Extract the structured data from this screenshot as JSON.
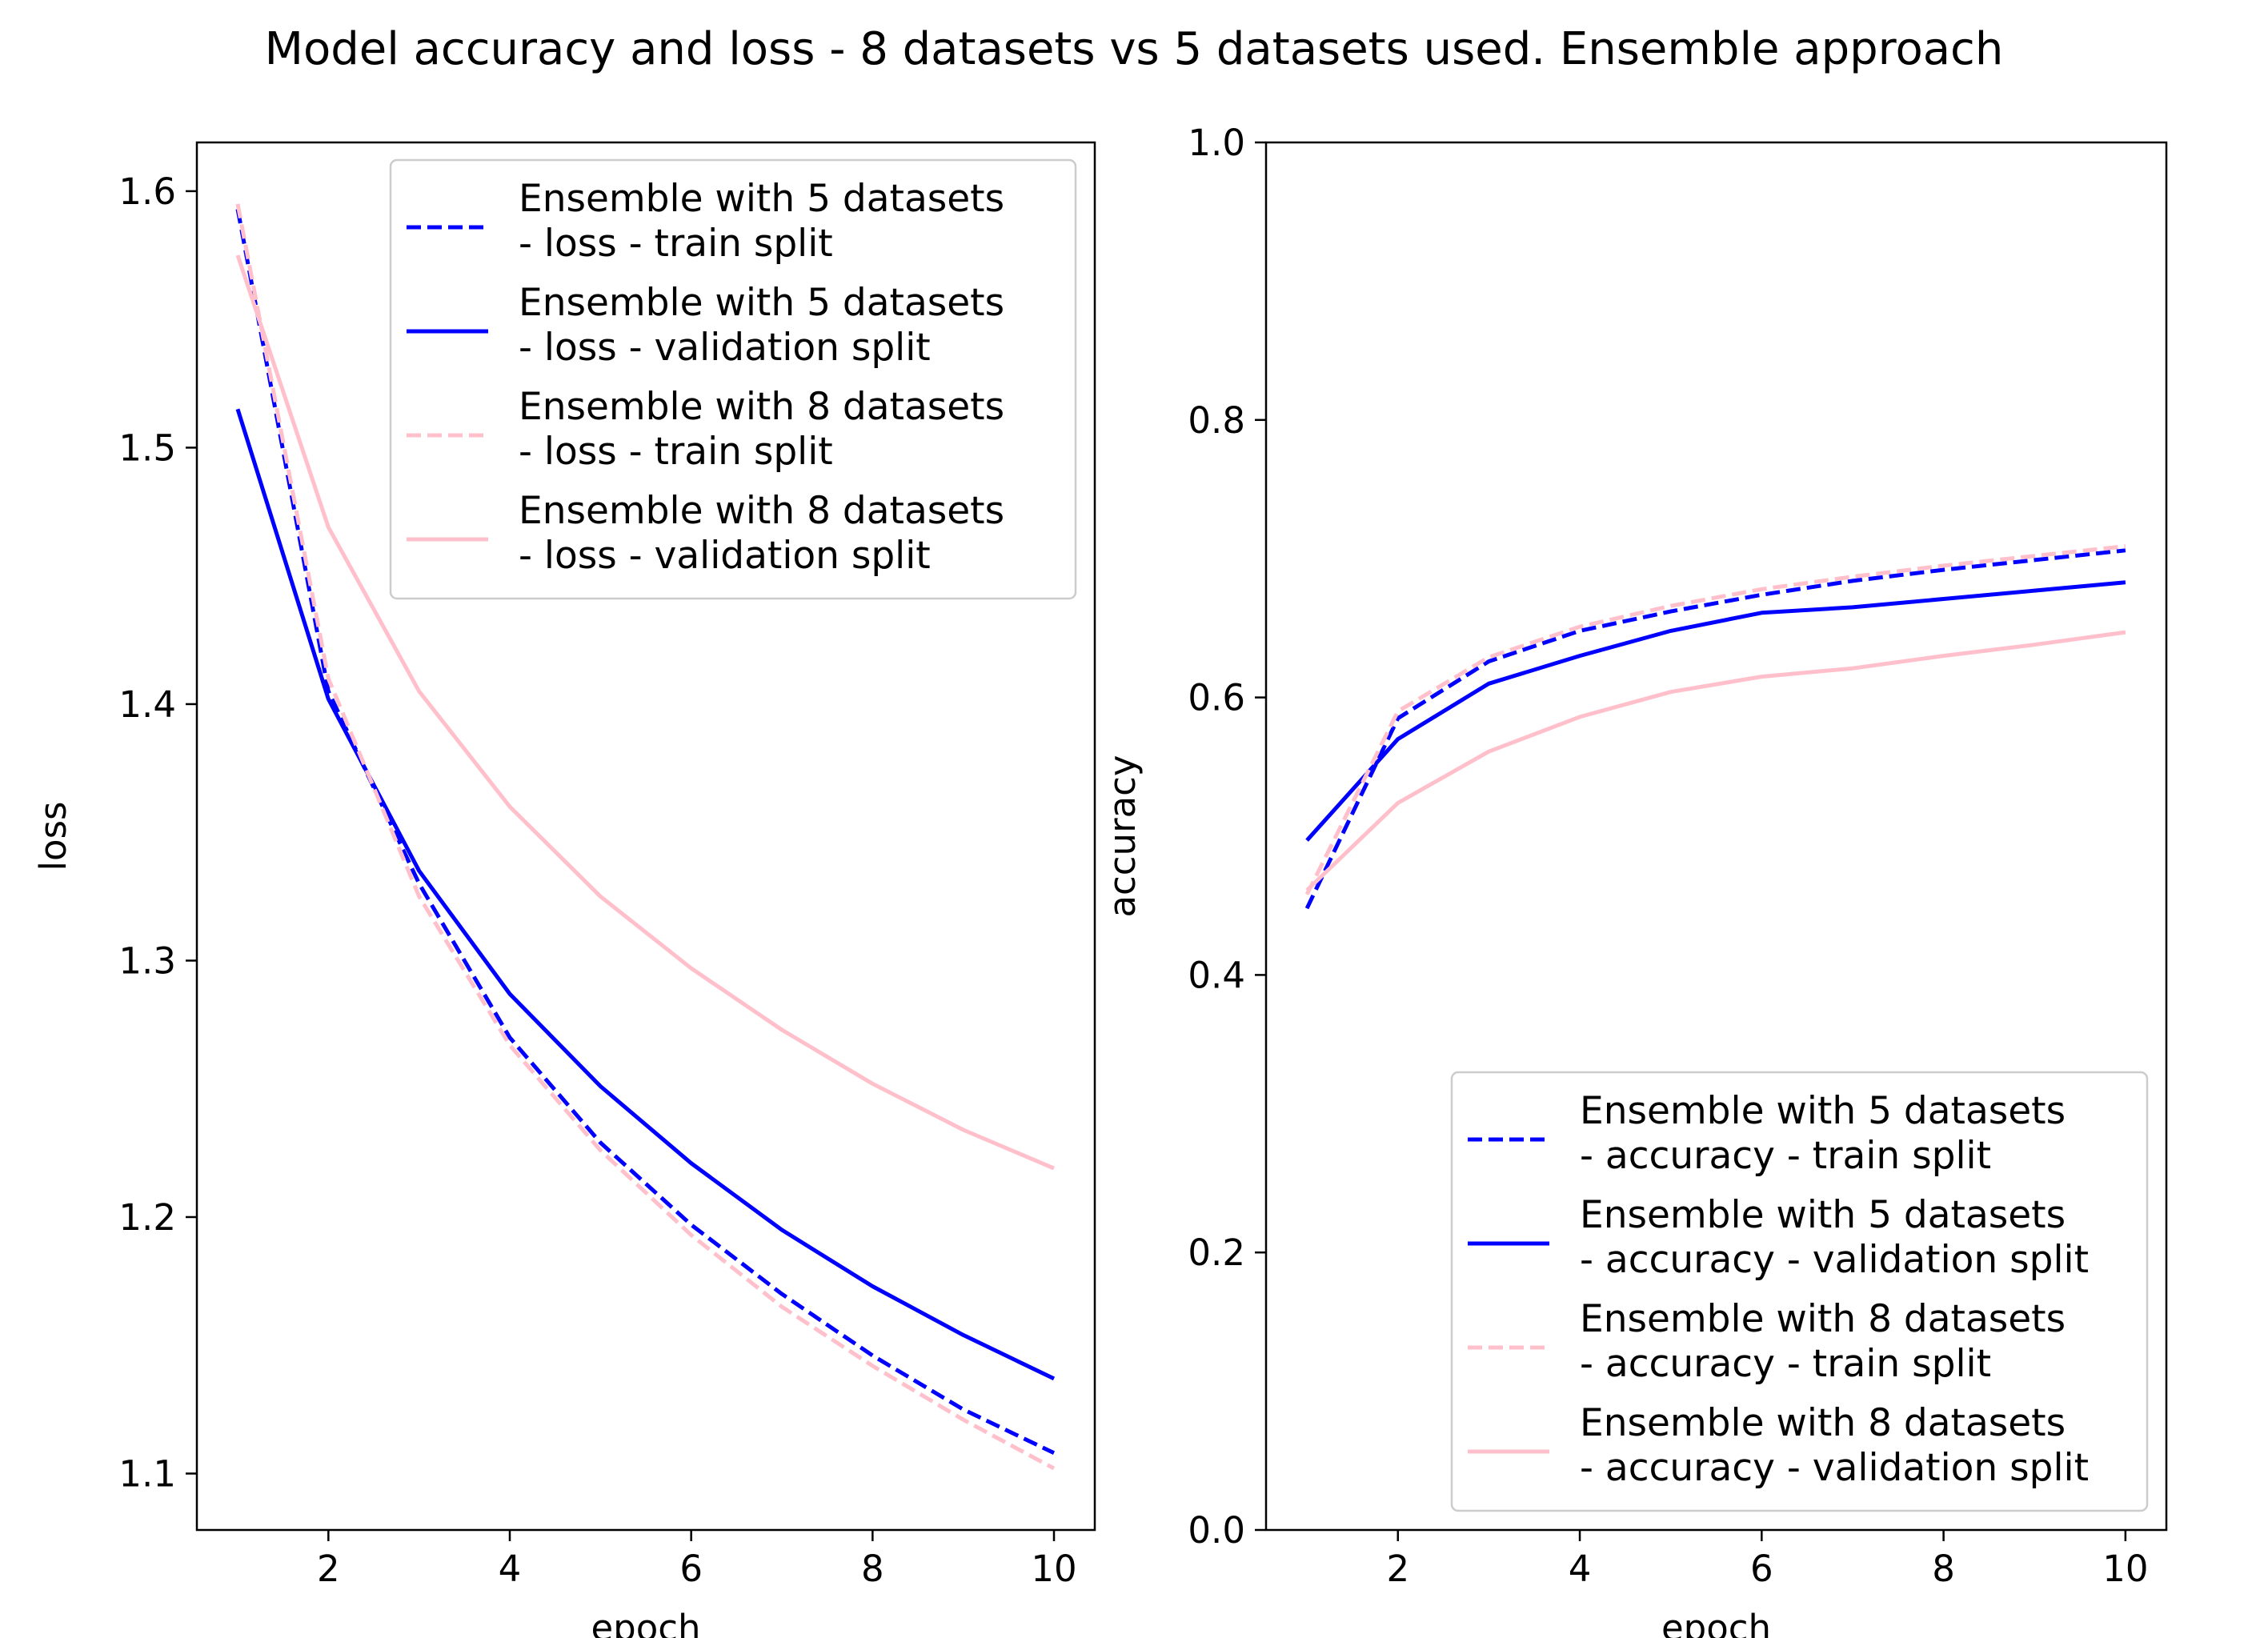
{
  "figure": {
    "title": "Model accuracy and loss - 8 datasets vs 5 datasets used. Ensemble  approach"
  },
  "chart_data": [
    {
      "type": "line",
      "title": "",
      "xlabel": "epoch",
      "ylabel": "loss",
      "xlim": [
        0.55,
        10.45
      ],
      "ylim": [
        1.078,
        1.619
      ],
      "xticks": [
        2,
        4,
        6,
        8,
        10
      ],
      "yticks": [
        1.1,
        1.2,
        1.3,
        1.4,
        1.5,
        1.6
      ],
      "xtick_labels": [
        "2",
        "4",
        "6",
        "8",
        "10"
      ],
      "ytick_labels": [
        "1.1",
        "1.2",
        "1.3",
        "1.4",
        "1.5",
        "1.6"
      ],
      "grid": false,
      "legend_position": "upper right",
      "x": [
        1,
        2,
        3,
        4,
        5,
        6,
        7,
        8,
        9,
        10
      ],
      "series": [
        {
          "name": "Ensemble with 5 datasets\n- loss - train split",
          "legend_lines": [
            "Ensemble with 5 datasets",
            "- loss - train split"
          ],
          "color": "#0000ff",
          "style": "dashed",
          "values": [
            1.593,
            1.405,
            1.33,
            1.27,
            1.229,
            1.197,
            1.17,
            1.146,
            1.125,
            1.108
          ]
        },
        {
          "name": "Ensemble with 5 datasets\n- loss - validation split",
          "legend_lines": [
            "Ensemble with 5 datasets",
            "- loss - validation split"
          ],
          "color": "#0000ff",
          "style": "solid",
          "values": [
            1.515,
            1.402,
            1.335,
            1.287,
            1.251,
            1.221,
            1.195,
            1.173,
            1.154,
            1.137
          ]
        },
        {
          "name": "Ensemble with 8 datasets\n- loss - train split",
          "legend_lines": [
            "Ensemble with 8 datasets",
            "- loss - train split"
          ],
          "color": "#ffc0cb",
          "style": "dashed",
          "values": [
            1.595,
            1.41,
            1.325,
            1.267,
            1.226,
            1.193,
            1.165,
            1.142,
            1.121,
            1.102
          ]
        },
        {
          "name": "Ensemble with 8 datasets\n- loss - validation split",
          "legend_lines": [
            "Ensemble with 8 datasets",
            "- loss - validation split"
          ],
          "color": "#ffc0cb",
          "style": "solid",
          "values": [
            1.575,
            1.469,
            1.405,
            1.36,
            1.325,
            1.297,
            1.273,
            1.252,
            1.234,
            1.219
          ]
        }
      ]
    },
    {
      "type": "line",
      "title": "",
      "xlabel": "epoch",
      "ylabel": "accuracy",
      "xlim": [
        0.55,
        10.45
      ],
      "ylim": [
        0.0,
        1.0
      ],
      "xticks": [
        2,
        4,
        6,
        8,
        10
      ],
      "yticks": [
        0.0,
        0.2,
        0.4,
        0.6,
        0.8,
        1.0
      ],
      "xtick_labels": [
        "2",
        "4",
        "6",
        "8",
        "10"
      ],
      "ytick_labels": [
        "0.0",
        "0.2",
        "0.4",
        "0.6",
        "0.8",
        "1.0"
      ],
      "grid": false,
      "legend_position": "lower right",
      "x": [
        1,
        2,
        3,
        4,
        5,
        6,
        7,
        8,
        9,
        10
      ],
      "series": [
        {
          "name": "Ensemble with 5 datasets\n- accuracy - train split",
          "legend_lines": [
            "Ensemble with 5 datasets",
            "- accuracy - train split"
          ],
          "color": "#0000ff",
          "style": "dashed",
          "values": [
            0.448,
            0.585,
            0.626,
            0.648,
            0.662,
            0.674,
            0.684,
            0.692,
            0.699,
            0.706
          ]
        },
        {
          "name": "Ensemble with 5 datasets\n- accuracy - validation split",
          "legend_lines": [
            "Ensemble with 5 datasets",
            "- accuracy - validation split"
          ],
          "color": "#0000ff",
          "style": "solid",
          "values": [
            0.497,
            0.57,
            0.61,
            0.63,
            0.648,
            0.661,
            0.665,
            0.671,
            0.677,
            0.683
          ]
        },
        {
          "name": "Ensemble with 8 datasets\n- accuracy - train split",
          "legend_lines": [
            "Ensemble with 8 datasets",
            "- accuracy - train split"
          ],
          "color": "#ffc0cb",
          "style": "dashed",
          "values": [
            0.458,
            0.59,
            0.629,
            0.651,
            0.666,
            0.678,
            0.687,
            0.695,
            0.702,
            0.709
          ]
        },
        {
          "name": "Ensemble with 8 datasets\n- accuracy - validation split",
          "legend_lines": [
            "Ensemble with 8 datasets",
            "- accuracy - validation split"
          ],
          "color": "#ffc0cb",
          "style": "solid",
          "values": [
            0.461,
            0.524,
            0.561,
            0.586,
            0.604,
            0.615,
            0.621,
            0.63,
            0.638,
            0.647
          ]
        }
      ]
    }
  ]
}
